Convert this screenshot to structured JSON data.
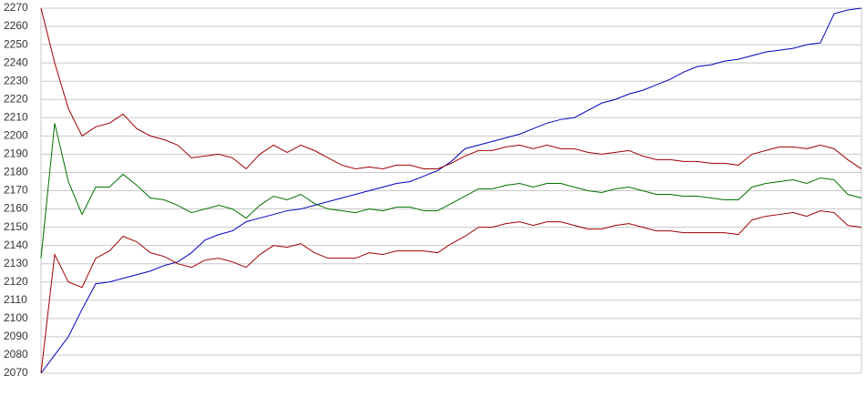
{
  "chart_data": {
    "type": "line",
    "ylim": [
      2070,
      2270
    ],
    "yticks": [
      2070,
      2080,
      2090,
      2100,
      2110,
      2120,
      2130,
      2140,
      2150,
      2160,
      2170,
      2180,
      2190,
      2200,
      2210,
      2220,
      2230,
      2240,
      2250,
      2260,
      2270
    ],
    "grid": true,
    "series": [
      {
        "color": "#0000c0",
        "values": [
          2070,
          2080,
          2090,
          2105,
          2119,
          2120,
          2122,
          2124,
          2126,
          2129,
          2131,
          2136,
          2143,
          2146,
          2148,
          2153,
          2155,
          2157,
          2159,
          2160,
          2162,
          2164,
          2166,
          2168,
          2170,
          2172,
          2174,
          2175,
          2178,
          2181,
          2186,
          2193,
          2195,
          2197,
          2199,
          2201,
          2204,
          2207,
          2209,
          2210,
          2214,
          2218,
          2220,
          2223,
          2225,
          2228,
          2231,
          2235,
          2238,
          2239,
          2241,
          2242,
          2244,
          2246,
          2247,
          2248,
          2250,
          2251,
          2267,
          2269,
          2270
        ]
      },
      {
        "color": "#007000",
        "values": [
          2133,
          2207,
          2175,
          2157,
          2172,
          2172,
          2179,
          2173,
          2166,
          2165,
          2162,
          2158,
          2160,
          2162,
          2160,
          2155,
          2162,
          2167,
          2165,
          2168,
          2163,
          2160,
          2159,
          2158,
          2160,
          2159,
          2161,
          2161,
          2159,
          2159,
          2163,
          2167,
          2171,
          2171,
          2173,
          2174,
          2172,
          2174,
          2174,
          2172,
          2170,
          2169,
          2171,
          2172,
          2170,
          2168,
          2168,
          2167,
          2167,
          2166,
          2165,
          2165,
          2172,
          2174,
          2175,
          2176,
          2174,
          2177,
          2176,
          2168,
          2166
        ]
      },
      {
        "color": "#a00000",
        "values": [
          2270,
          2240,
          2215,
          2200,
          2205,
          2207,
          2212,
          2204,
          2200,
          2198,
          2195,
          2188,
          2189,
          2190,
          2188,
          2182,
          2190,
          2195,
          2191,
          2195,
          2192,
          2188,
          2184,
          2182,
          2183,
          2182,
          2184,
          2184,
          2182,
          2182,
          2185,
          2189,
          2192,
          2192,
          2194,
          2195,
          2193,
          2195,
          2193,
          2193,
          2191,
          2190,
          2191,
          2192,
          2189,
          2187,
          2187,
          2186,
          2186,
          2185,
          2185,
          2184,
          2190,
          2192,
          2194,
          2194,
          2193,
          2195,
          2193,
          2187,
          2182
        ]
      },
      {
        "color": "#a00000",
        "values": [
          2070,
          2135,
          2120,
          2117,
          2133,
          2137,
          2145,
          2142,
          2136,
          2134,
          2130,
          2128,
          2132,
          2133,
          2131,
          2128,
          2135,
          2140,
          2139,
          2141,
          2136,
          2133,
          2133,
          2133,
          2136,
          2135,
          2137,
          2137,
          2137,
          2136,
          2141,
          2145,
          2150,
          2150,
          2152,
          2153,
          2151,
          2153,
          2153,
          2151,
          2149,
          2149,
          2151,
          2152,
          2150,
          2148,
          2148,
          2147,
          2147,
          2147,
          2147,
          2146,
          2154,
          2156,
          2157,
          2158,
          2156,
          2159,
          2158,
          2151,
          2150
        ]
      }
    ]
  }
}
